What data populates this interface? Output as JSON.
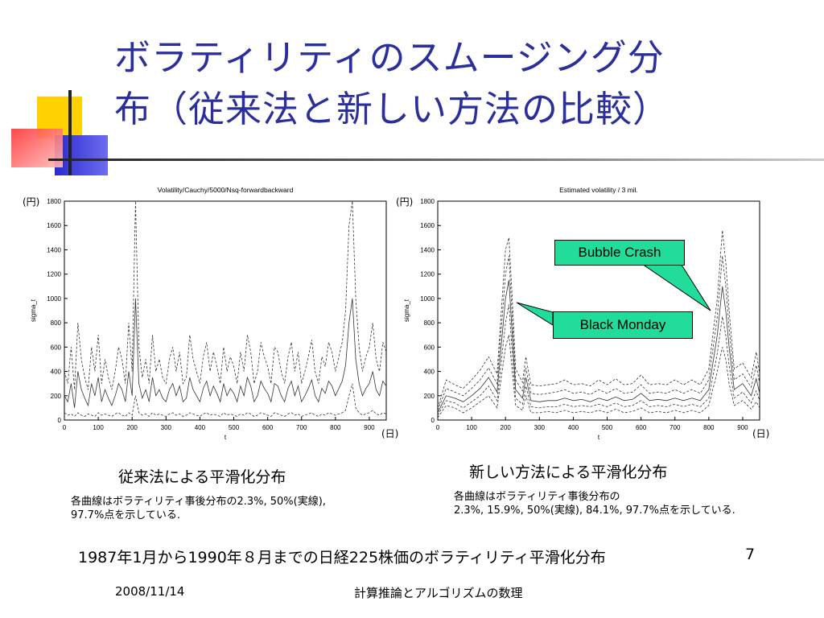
{
  "slide": {
    "title_line1": "ボラティリティのスムージング分",
    "title_line2": "布（従来法と新しい方法の比較）",
    "summary": "1987年1月から1990年８月までの日経225株価のボラティリティ平滑化分布",
    "page_number": "7",
    "footer_date": "2008/11/14",
    "footer_title": "計算推論とアルゴリズムの数理",
    "colors": {
      "title": "#2b2f9c",
      "callout": "#22dd99",
      "deco_yellow": "#ffd100",
      "deco_blue": "#3333cc",
      "deco_red": "#ff4444"
    }
  },
  "left": {
    "unit_y": "(円)",
    "unit_x": "(日)",
    "caption": "従来法による平滑化分布",
    "note_line1": "各曲線はボラティリティ事後分布の2.3%,  50%(実線),",
    "note_line2": " 97.7%点を示している."
  },
  "right": {
    "unit_y": "(円)",
    "unit_x": "(日)",
    "caption": "新しい方法による平滑化分布",
    "note_line1": "各曲線はボラティリティ事後分布の",
    "note_line2": "2.3%, 15.9%, 50%(実線), 84.1%, 97.7%点を示している.",
    "callout_bubble": "Bubble Crash",
    "callout_monday": "Black Monday"
  },
  "chart_data": [
    {
      "type": "line",
      "title": "Volatility/Cauchy/5000/Nsq-forwardbackward",
      "xlabel": "t",
      "ylabel": "sigma_t",
      "xlim": [
        0,
        950
      ],
      "ylim": [
        0,
        1800
      ],
      "x_ticks": [
        0,
        100,
        200,
        300,
        400,
        500,
        600,
        700,
        800,
        900
      ],
      "y_ticks": [
        0,
        200,
        400,
        600,
        800,
        1000,
        1200,
        1400,
        1600,
        1800
      ],
      "x_tick_labels": [
        "0",
        "100",
        "200",
        "300",
        "400",
        "500",
        "600",
        "700",
        "800",
        "900"
      ],
      "y_tick_labels": [
        "0",
        "200",
        "400",
        "600",
        "800",
        "1000",
        "1200",
        "1400",
        "1600",
        "1800"
      ],
      "grid": false,
      "x": [
        0,
        10,
        20,
        30,
        40,
        50,
        60,
        70,
        80,
        90,
        100,
        110,
        120,
        130,
        140,
        150,
        160,
        170,
        180,
        190,
        200,
        210,
        220,
        230,
        240,
        250,
        260,
        270,
        280,
        290,
        300,
        310,
        320,
        330,
        340,
        350,
        360,
        370,
        380,
        390,
        400,
        410,
        420,
        430,
        440,
        450,
        460,
        470,
        480,
        490,
        500,
        510,
        520,
        530,
        540,
        550,
        560,
        570,
        580,
        590,
        600,
        610,
        620,
        630,
        640,
        650,
        660,
        670,
        680,
        690,
        700,
        710,
        720,
        730,
        740,
        750,
        760,
        770,
        780,
        790,
        800,
        810,
        820,
        830,
        840,
        850,
        860,
        870,
        880,
        890,
        900,
        910,
        920,
        930,
        940,
        950
      ],
      "series": [
        {
          "name": "2.3%",
          "style": "dashed",
          "values": [
            60,
            40,
            50,
            30,
            60,
            40,
            30,
            50,
            40,
            30,
            60,
            40,
            50,
            40,
            30,
            50,
            60,
            40,
            30,
            60,
            40,
            200,
            60,
            40,
            50,
            30,
            60,
            40,
            50,
            40,
            30,
            50,
            60,
            40,
            50,
            30,
            40,
            60,
            50,
            40,
            30,
            50,
            60,
            40,
            50,
            40,
            30,
            60,
            40,
            50,
            40,
            30,
            50,
            40,
            60,
            50,
            30,
            40,
            60,
            50,
            40,
            30,
            60,
            50,
            40,
            30,
            50,
            60,
            40,
            50,
            30,
            40,
            50,
            60,
            40,
            30,
            50,
            40,
            60,
            50,
            40,
            50,
            60,
            80,
            200,
            300,
            100,
            60,
            40,
            50,
            60,
            80,
            50,
            40,
            60,
            50
          ]
        },
        {
          "name": "50%",
          "style": "solid",
          "values": [
            200,
            150,
            300,
            100,
            400,
            250,
            180,
            120,
            300,
            200,
            350,
            150,
            250,
            180,
            120,
            200,
            300,
            250,
            150,
            400,
            200,
            1000,
            300,
            180,
            250,
            150,
            350,
            200,
            250,
            180,
            150,
            250,
            300,
            200,
            280,
            150,
            180,
            350,
            250,
            200,
            150,
            260,
            320,
            200,
            280,
            220,
            150,
            300,
            200,
            260,
            220,
            150,
            280,
            200,
            350,
            280,
            150,
            200,
            320,
            260,
            220,
            150,
            300,
            280,
            200,
            150,
            260,
            320,
            200,
            280,
            150,
            200,
            260,
            330,
            200,
            150,
            260,
            220,
            320,
            280,
            200,
            260,
            320,
            450,
            800,
            1000,
            500,
            300,
            200,
            260,
            300,
            400,
            250,
            200,
            320,
            280
          ]
        },
        {
          "name": "97.7%",
          "style": "dashed",
          "values": [
            400,
            300,
            600,
            250,
            800,
            500,
            350,
            250,
            600,
            400,
            700,
            300,
            500,
            350,
            250,
            400,
            600,
            500,
            300,
            800,
            400,
            1800,
            600,
            350,
            500,
            300,
            700,
            400,
            500,
            350,
            300,
            500,
            600,
            400,
            560,
            300,
            350,
            700,
            500,
            400,
            300,
            520,
            640,
            400,
            560,
            440,
            300,
            600,
            400,
            520,
            440,
            300,
            560,
            400,
            700,
            560,
            300,
            400,
            640,
            520,
            440,
            300,
            600,
            560,
            400,
            300,
            520,
            640,
            400,
            560,
            300,
            400,
            520,
            660,
            400,
            300,
            520,
            440,
            640,
            560,
            400,
            520,
            640,
            900,
            1600,
            1800,
            1000,
            600,
            400,
            520,
            600,
            800,
            500,
            400,
            640,
            560
          ]
        }
      ]
    },
    {
      "type": "line",
      "title": "Estimated volatility / 3 mil.",
      "xlabel": "t",
      "ylabel": "sigma_t",
      "xlim": [
        0,
        950
      ],
      "ylim": [
        0,
        1800
      ],
      "x_ticks": [
        0,
        100,
        200,
        300,
        400,
        500,
        600,
        700,
        800,
        900
      ],
      "y_ticks": [
        0,
        200,
        400,
        600,
        800,
        1000,
        1200,
        1400,
        1600,
        1800
      ],
      "x_tick_labels": [
        "0",
        "100",
        "200",
        "300",
        "400",
        "500",
        "600",
        "700",
        "800",
        "900"
      ],
      "y_tick_labels": [
        "0",
        "200",
        "400",
        "600",
        "800",
        "1000",
        "1200",
        "1400",
        "1600",
        "1800"
      ],
      "grid": false,
      "x": [
        0,
        25,
        50,
        75,
        100,
        125,
        150,
        175,
        200,
        210,
        220,
        230,
        250,
        260,
        275,
        300,
        325,
        350,
        375,
        400,
        425,
        450,
        475,
        500,
        525,
        550,
        575,
        600,
        625,
        650,
        675,
        700,
        725,
        750,
        775,
        800,
        825,
        840,
        850,
        860,
        875,
        900,
        925,
        940,
        950
      ],
      "series": [
        {
          "name": "2.3%",
          "style": "dashed",
          "values": [
            20,
            120,
            100,
            60,
            100,
            150,
            200,
            100,
            600,
            700,
            400,
            120,
            80,
            200,
            60,
            60,
            70,
            60,
            80,
            60,
            70,
            60,
            80,
            60,
            90,
            60,
            70,
            100,
            60,
            70,
            60,
            80,
            60,
            80,
            60,
            120,
            400,
            600,
            500,
            300,
            120,
            160,
            90,
            150,
            100
          ]
        },
        {
          "name": "15.9%",
          "style": "dashed",
          "values": [
            40,
            160,
            140,
            100,
            150,
            200,
            280,
            160,
            800,
            950,
            550,
            180,
            130,
            280,
            110,
            100,
            110,
            110,
            130,
            110,
            120,
            110,
            130,
            110,
            140,
            110,
            120,
            160,
            110,
            120,
            110,
            130,
            110,
            130,
            110,
            180,
            550,
            850,
            700,
            450,
            180,
            230,
            140,
            240,
            160
          ]
        },
        {
          "name": "50%",
          "style": "solid",
          "values": [
            60,
            200,
            180,
            150,
            200,
            260,
            350,
            230,
            1000,
            1150,
            700,
            250,
            180,
            350,
            160,
            150,
            160,
            160,
            180,
            160,
            170,
            150,
            180,
            160,
            190,
            160,
            170,
            220,
            160,
            170,
            160,
            180,
            160,
            180,
            160,
            250,
            700,
            1100,
            900,
            600,
            250,
            300,
            200,
            340,
            220
          ]
        },
        {
          "name": "84.1%",
          "style": "dashed",
          "values": [
            80,
            260,
            230,
            200,
            260,
            330,
            430,
            300,
            1200,
            1350,
            850,
            330,
            240,
            430,
            220,
            210,
            220,
            230,
            250,
            220,
            230,
            210,
            250,
            220,
            260,
            220,
            230,
            290,
            220,
            230,
            220,
            250,
            220,
            250,
            220,
            330,
            850,
            1350,
            1100,
            750,
            330,
            380,
            270,
            450,
            300
          ]
        },
        {
          "name": "97.7%",
          "style": "dashed",
          "values": [
            100,
            330,
            290,
            260,
            330,
            410,
            520,
            380,
            1400,
            1500,
            1000,
            420,
            310,
            520,
            290,
            280,
            290,
            300,
            330,
            290,
            300,
            280,
            330,
            290,
            340,
            290,
            300,
            370,
            290,
            300,
            290,
            330,
            290,
            330,
            290,
            420,
            1000,
            1560,
            1300,
            900,
            420,
            470,
            350,
            560,
            380
          ]
        }
      ]
    }
  ]
}
